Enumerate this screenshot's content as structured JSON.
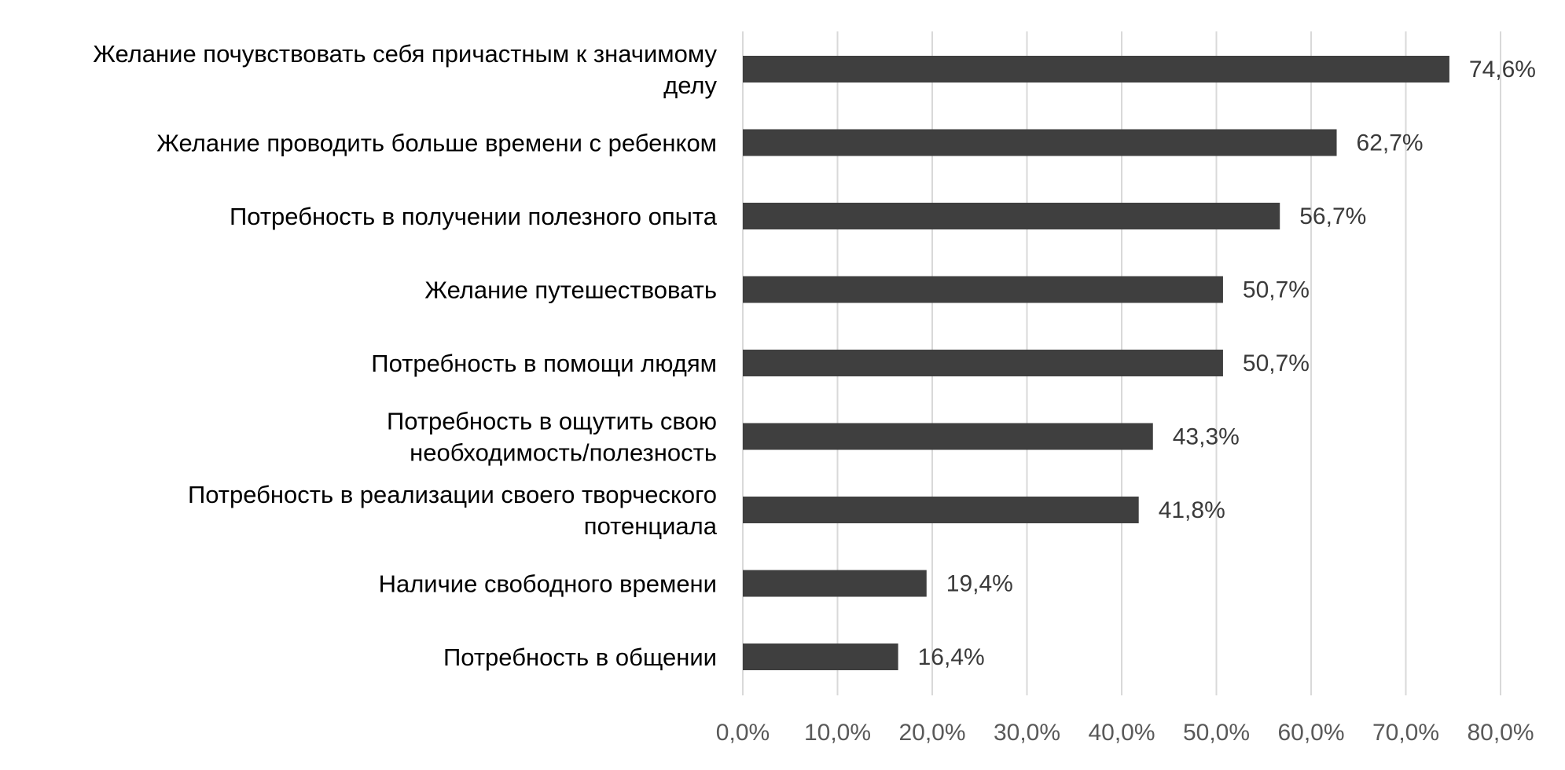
{
  "chart_data": {
    "type": "bar",
    "orientation": "horizontal",
    "title": "",
    "xlabel": "",
    "ylabel": "",
    "categories": [
      [
        "Желание почувствовать себя причастным к значимому",
        "делу"
      ],
      [
        "Желание проводить больше времени с ребенком"
      ],
      [
        "Потребность в получении полезного опыта"
      ],
      [
        "Желание путешествовать"
      ],
      [
        "Потребность в помощи людям"
      ],
      [
        "Потребность в ощутить свою",
        "необходимость/полезность"
      ],
      [
        "Потребность в реализации своего творческого",
        "потенциала"
      ],
      [
        "Наличие свободного времени"
      ],
      [
        "Потребность в общении"
      ]
    ],
    "values": [
      74.6,
      62.7,
      56.7,
      50.7,
      50.7,
      43.3,
      41.8,
      19.4,
      16.4
    ],
    "value_labels": [
      "74,6%",
      "62,7%",
      "56,7%",
      "50,7%",
      "50,7%",
      "43,3%",
      "41,8%",
      "19,4%",
      "16,4%"
    ],
    "xlim": [
      0,
      80
    ],
    "xticks": [
      0,
      10,
      20,
      30,
      40,
      50,
      60,
      70,
      80
    ],
    "xtick_labels": [
      "0,0%",
      "10,0%",
      "20,0%",
      "30,0%",
      "40,0%",
      "50,0%",
      "60,0%",
      "70,0%",
      "80,0%"
    ],
    "grid": "vertical",
    "legend": "none",
    "colors": {
      "bar": "#3f3f3f",
      "grid": "#d9d9d9",
      "tick_text": "#595959"
    }
  }
}
